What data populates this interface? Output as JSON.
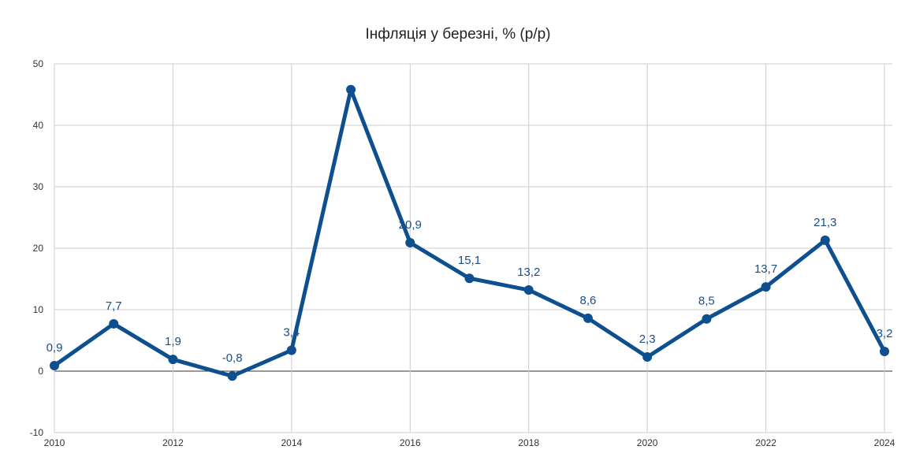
{
  "chart_data": {
    "type": "line",
    "title": "Інфляція у березні, % (р/р)",
    "xlabel": "",
    "ylabel": "",
    "x": [
      2010,
      2011,
      2012,
      2013,
      2014,
      2015,
      2016,
      2017,
      2018,
      2019,
      2020,
      2021,
      2022,
      2023,
      2024
    ],
    "series": [
      {
        "values": [
          0.9,
          7.7,
          1.9,
          -0.8,
          3.4,
          45.8,
          20.9,
          15.1,
          13.2,
          8.6,
          2.3,
          8.5,
          13.7,
          21.3,
          3.2
        ],
        "labels": [
          "0,9",
          "7,7",
          "1,9",
          "-0,8",
          "3,4",
          null,
          "20,9",
          "15,1",
          "13,2",
          "8,6",
          "2,3",
          "8,5",
          "13,7",
          "21,3",
          "3,2"
        ]
      }
    ],
    "x_ticks": [
      "2010",
      "2012",
      "2014",
      "2016",
      "2018",
      "2020",
      "2022",
      "2024"
    ],
    "x_tick_values": [
      2010,
      2012,
      2014,
      2016,
      2018,
      2020,
      2022,
      2024
    ],
    "y_ticks": [
      "-10",
      "0",
      "10",
      "20",
      "30",
      "40",
      "50"
    ],
    "y_tick_values": [
      -10,
      0,
      10,
      20,
      30,
      40,
      50
    ],
    "xlim": [
      2010,
      2024
    ],
    "ylim": [
      -10,
      50
    ],
    "grid": true,
    "legend": "none",
    "colors": {
      "line": "#0e4f8f",
      "label": "#1a4f8b",
      "grid": "#cccccc",
      "zero_line": "#333333"
    }
  }
}
